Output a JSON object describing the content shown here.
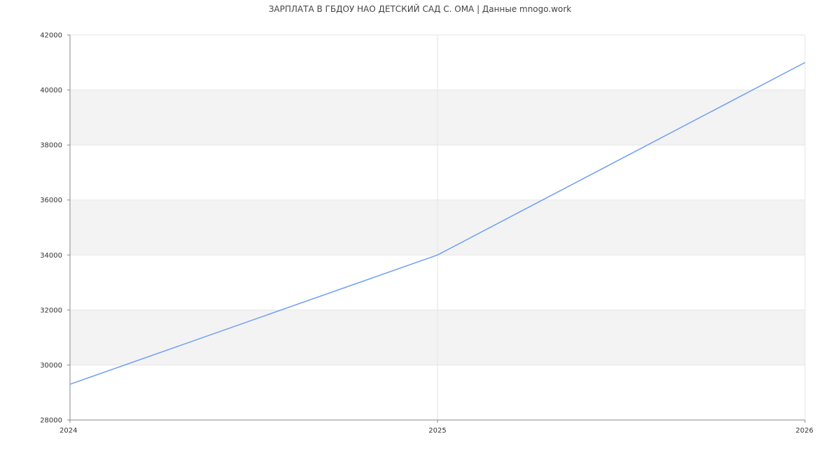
{
  "chart_data": {
    "type": "line",
    "title": "ЗАРПЛАТА В ГБДОУ НАО ДЕТСКИЙ САД С. ОМА | Данные mnogo.work",
    "xlabel": "",
    "ylabel": "",
    "x": [
      "2024",
      "2025",
      "2026"
    ],
    "series": [
      {
        "values": [
          29300,
          34000,
          41000
        ],
        "color": "#6f9ef5"
      }
    ],
    "ylim": [
      28000,
      42000
    ],
    "yticks": [
      28000,
      30000,
      32000,
      34000,
      36000,
      38000,
      40000,
      42000
    ],
    "grid": true,
    "band_color": "#f3f3f3",
    "grid_color": "#e5e5e5"
  }
}
